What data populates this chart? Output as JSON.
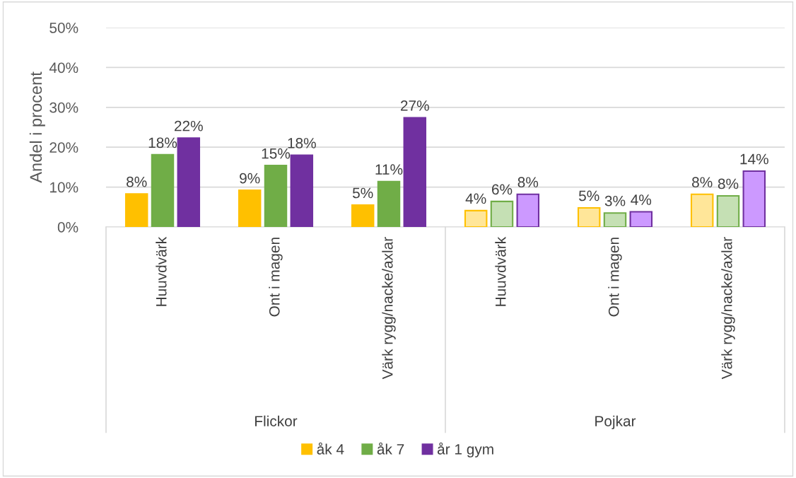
{
  "chart_data": {
    "type": "bar",
    "ylabel": "Andel i procent",
    "categories": [
      "Huuvdvärk",
      "Ont i magen",
      "Värk rygg/nacke/axlar",
      "Huuvdvärk",
      "Ont i magen",
      "Värk rygg/nacke/axlar"
    ],
    "annotations": [
      "Flickor",
      "Pojkar"
    ],
    "series": [
      {
        "name": "åk 4",
        "color": "#ffc000",
        "colors": [
          "#ffc000",
          "#ffc000",
          "#ffc000",
          "#ffe699",
          "#ffe699",
          "#ffe699"
        ],
        "values": [
          8.3,
          9.2,
          5.5,
          4.1,
          4.8,
          8.2
        ],
        "value_labels": [
          "8%",
          "9%",
          "5%",
          "4%",
          "5%",
          "8%"
        ]
      },
      {
        "name": "åk 7",
        "color": "#70ad47",
        "colors": [
          "#70ad47",
          "#70ad47",
          "#70ad47",
          "#c5e0b4",
          "#c5e0b4",
          "#c5e0b4"
        ],
        "values": [
          18.1,
          15.4,
          11.4,
          6.4,
          3.5,
          7.8
        ],
        "value_labels": [
          "18%",
          "15%",
          "11%",
          "6%",
          "3%",
          "8%"
        ]
      },
      {
        "name": "år 1 gym",
        "color": "#7030a0",
        "colors": [
          "#7030a0",
          "#7030a0",
          "#7030a0",
          "#cc99ff",
          "#cc99ff",
          "#cc99ff"
        ],
        "values": [
          22.3,
          18.0,
          27.4,
          8.2,
          3.8,
          14.0
        ],
        "value_labels": [
          "22%",
          "18%",
          "27%",
          "8%",
          "4%",
          "14%"
        ]
      }
    ],
    "ylim": [
      0,
      50
    ],
    "yticks": [
      {
        "value": 0,
        "label": "0%"
      },
      {
        "value": 10,
        "label": "10%"
      },
      {
        "value": 20,
        "label": "20%"
      },
      {
        "value": 30,
        "label": "30%"
      },
      {
        "value": 40,
        "label": "40%"
      },
      {
        "value": 50,
        "label": "50%"
      }
    ],
    "grid": "y",
    "legend": "bottom"
  }
}
